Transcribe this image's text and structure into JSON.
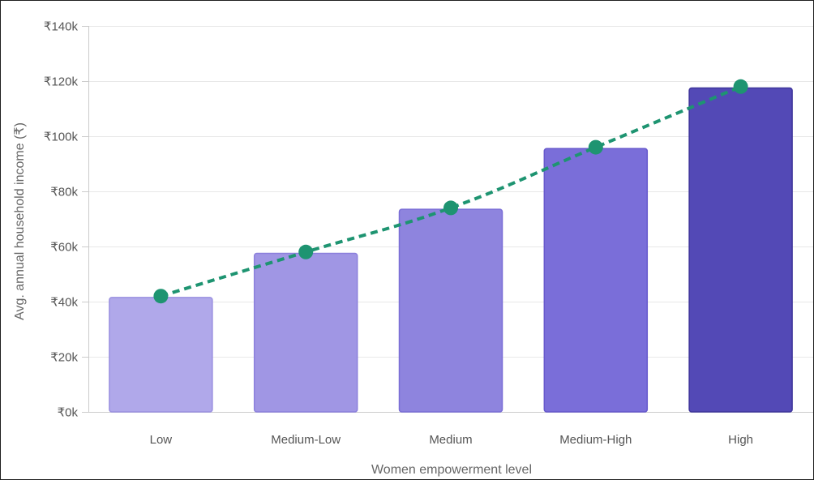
{
  "chart_data": {
    "type": "bar",
    "title": "",
    "xlabel": "Women empowerment level",
    "ylabel": "Avg. annual household income (₹)",
    "categories": [
      "Low",
      "Medium-Low",
      "Medium",
      "Medium-High",
      "High"
    ],
    "series": [
      {
        "kind": "bar",
        "values": [
          41500,
          57500,
          73500,
          95500,
          117500
        ]
      },
      {
        "kind": "line",
        "style": "dashed",
        "values": [
          42000,
          58000,
          74000,
          96000,
          118000
        ]
      }
    ],
    "ylim": [
      0,
      140000
    ],
    "yticks": [
      0,
      20000,
      40000,
      60000,
      80000,
      100000,
      120000,
      140000
    ],
    "ytick_labels": [
      "₹0k",
      "₹20k",
      "₹40k",
      "₹60k",
      "₹80k",
      "₹100k",
      "₹120k",
      "₹140k"
    ],
    "grid": true,
    "legend": "none",
    "colors": {
      "bars": [
        "#b0a8ea",
        "#a096e4",
        "#8e84de",
        "#7a6ed9",
        "#5349b6"
      ],
      "bar_borders": [
        "#9a90e0",
        "#8c80dc",
        "#7a6ed6",
        "#6658cc",
        "#3f369c"
      ],
      "line": "#1e9471",
      "grid": "#e8e8e8",
      "axis": "#cccccc"
    }
  }
}
